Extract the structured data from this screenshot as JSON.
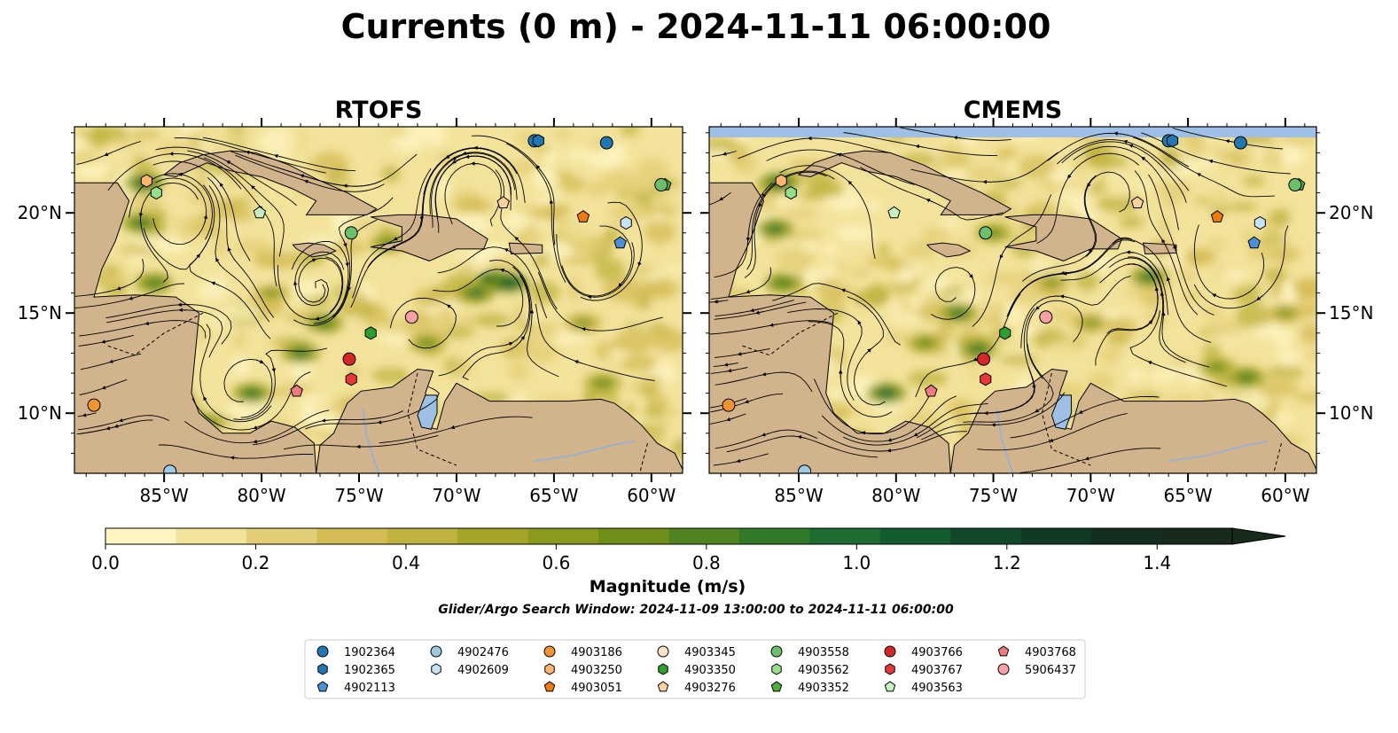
{
  "title": "Currents (0 m) - 2024-11-11 06:00:00",
  "panels": [
    {
      "id": "rtofs",
      "label": "RTOFS"
    },
    {
      "id": "cmems",
      "label": "CMEMS"
    }
  ],
  "map_extent": {
    "lon": [
      -89.6,
      -58.4
    ],
    "lat": [
      7.0,
      24.3
    ]
  },
  "axes": {
    "lon_ticks": [
      {
        "value": -85,
        "label": "85°W"
      },
      {
        "value": -80,
        "label": "80°W"
      },
      {
        "value": -75,
        "label": "75°W"
      },
      {
        "value": -70,
        "label": "70°W"
      },
      {
        "value": -65,
        "label": "65°W"
      },
      {
        "value": -60,
        "label": "60°W"
      }
    ],
    "lat_ticks": [
      {
        "value": 10,
        "label": "10°N"
      },
      {
        "value": 15,
        "label": "15°N"
      },
      {
        "value": 20,
        "label": "20°N"
      }
    ]
  },
  "colorbar": {
    "label": "Magnitude (m/s)",
    "range": [
      0,
      1.5
    ],
    "extend": "max",
    "tick_labels": [
      "0.0",
      "0.2",
      "0.4",
      "0.6",
      "0.8",
      "1.0",
      "1.2",
      "1.4"
    ],
    "tick_values": [
      0,
      0.2,
      0.4,
      0.6,
      0.8,
      1.0,
      1.2,
      1.4
    ],
    "colors": [
      "#fdf6c3",
      "#f2e39a",
      "#e3cd76",
      "#d4bb54",
      "#bfb23e",
      "#a4a428",
      "#8a9a1c",
      "#6e9018",
      "#4f8420",
      "#327a2a",
      "#1d6c32",
      "#125c30",
      "#10492a",
      "#113a24",
      "#132e1e",
      "#182a1a"
    ]
  },
  "search_window": "Glider/Argo Search Window: 2024-11-09 13:00:00 to 2024-11-11 06:00:00",
  "colors": {
    "land": "#d2b48c",
    "water": "#9ec0e6",
    "ocean_low": "#f3e39b"
  },
  "legend": {
    "columns": [
      [
        {
          "id": "1902364",
          "color": "#1f77b4",
          "marker": "circle"
        },
        {
          "id": "1902365",
          "color": "#1f77b4",
          "marker": "hexagon"
        },
        {
          "id": "4902113",
          "color": "#4a90d9",
          "marker": "pentagon"
        }
      ],
      [
        {
          "id": "4902476",
          "color": "#9ecae1",
          "marker": "circle"
        },
        {
          "id": "4902609",
          "color": "#c6e2f5",
          "marker": "hexagon"
        }
      ],
      [
        {
          "id": "4903186",
          "color": "#f39230",
          "marker": "circle"
        },
        {
          "id": "4903250",
          "color": "#fdb56f",
          "marker": "hexagon"
        },
        {
          "id": "4903051",
          "color": "#f07a10",
          "marker": "pentagon"
        }
      ],
      [
        {
          "id": "4903345",
          "color": "#fde0c5",
          "marker": "circle"
        },
        {
          "id": "4903350",
          "color": "#2ca02c",
          "marker": "hexagon"
        },
        {
          "id": "4903276",
          "color": "#fdd0a2",
          "marker": "pentagon"
        }
      ],
      [
        {
          "id": "4903558",
          "color": "#6cc06c",
          "marker": "circle"
        },
        {
          "id": "4903562",
          "color": "#98df8a",
          "marker": "hexagon"
        },
        {
          "id": "4903352",
          "color": "#4caf3a",
          "marker": "pentagon"
        }
      ],
      [
        {
          "id": "4903766",
          "color": "#d62728",
          "marker": "circle"
        },
        {
          "id": "4903767",
          "color": "#e8393a",
          "marker": "hexagon"
        },
        {
          "id": "4903563",
          "color": "#c7f0c0",
          "marker": "pentagon"
        }
      ],
      [
        {
          "id": "4903768",
          "color": "#ef7b7f",
          "marker": "pentagon"
        },
        {
          "id": "5906437",
          "color": "#f7a1a5",
          "marker": "circle"
        }
      ]
    ]
  },
  "observations": [
    {
      "id": "1902364",
      "lon": -62.3,
      "lat": 23.5,
      "color": "#1f77b4",
      "marker": "circle"
    },
    {
      "id": "1902364",
      "lon": -66.0,
      "lat": 23.6,
      "color": "#1f77b4",
      "marker": "circle"
    },
    {
      "id": "1902365",
      "lon": -65.8,
      "lat": 23.6,
      "color": "#1f77b4",
      "marker": "hexagon"
    },
    {
      "id": "4902113",
      "lon": -61.6,
      "lat": 18.5,
      "color": "#4a90d9",
      "marker": "pentagon"
    },
    {
      "id": "4902476",
      "lon": -84.7,
      "lat": 7.1,
      "color": "#9ecae1",
      "marker": "circle"
    },
    {
      "id": "4902609",
      "lon": -61.3,
      "lat": 19.5,
      "color": "#c6e2f5",
      "marker": "hexagon"
    },
    {
      "id": "4903186",
      "lon": -88.6,
      "lat": 10.4,
      "color": "#f39230",
      "marker": "circle"
    },
    {
      "id": "4903250",
      "lon": -85.9,
      "lat": 21.6,
      "color": "#fdb56f",
      "marker": "hexagon"
    },
    {
      "id": "4903051",
      "lon": -63.5,
      "lat": 19.8,
      "color": "#f07a10",
      "marker": "pentagon"
    },
    {
      "id": "4903276",
      "lon": -67.6,
      "lat": 20.5,
      "color": "#fdd0a2",
      "marker": "pentagon"
    },
    {
      "id": "4903350",
      "lon": -74.4,
      "lat": 14.0,
      "color": "#2ca02c",
      "marker": "hexagon"
    },
    {
      "id": "4903352",
      "lon": -59.3,
      "lat": 21.4,
      "color": "#4caf3a",
      "marker": "pentagon"
    },
    {
      "id": "4903558",
      "lon": -75.4,
      "lat": 19.0,
      "color": "#6cc06c",
      "marker": "circle"
    },
    {
      "id": "4903558",
      "lon": -59.5,
      "lat": 21.4,
      "color": "#6cc06c",
      "marker": "circle"
    },
    {
      "id": "4903562",
      "lon": -85.4,
      "lat": 21.0,
      "color": "#98df8a",
      "marker": "hexagon"
    },
    {
      "id": "4903563",
      "lon": -80.1,
      "lat": 20.0,
      "color": "#c7f0c0",
      "marker": "pentagon"
    },
    {
      "id": "4903766",
      "lon": -75.5,
      "lat": 12.7,
      "color": "#d62728",
      "marker": "circle"
    },
    {
      "id": "4903767",
      "lon": -75.4,
      "lat": 11.7,
      "color": "#e8393a",
      "marker": "hexagon"
    },
    {
      "id": "4903768",
      "lon": -78.2,
      "lat": 11.1,
      "color": "#ef7b7f",
      "marker": "pentagon"
    },
    {
      "id": "5906437",
      "lon": -72.3,
      "lat": 14.8,
      "color": "#f7a1a5",
      "marker": "circle"
    }
  ]
}
